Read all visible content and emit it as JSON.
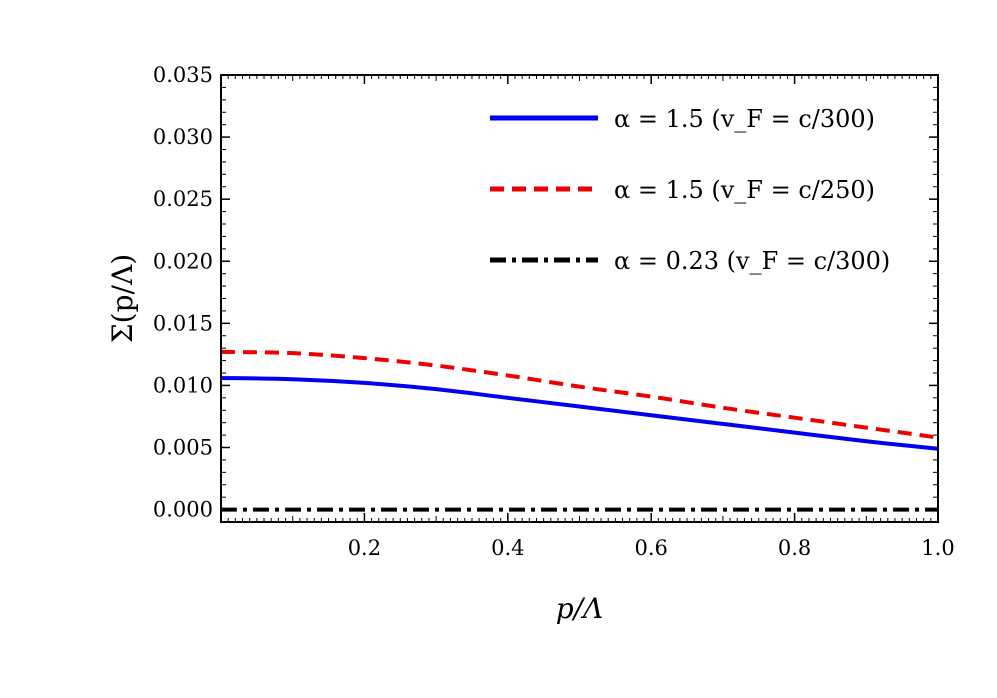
{
  "chart_data": {
    "type": "line",
    "title": "",
    "xlabel": "p/Λ",
    "ylabel": "Σ(p/Λ)",
    "xlim": [
      0.0,
      1.0
    ],
    "ylim": [
      -0.001,
      0.035
    ],
    "x_ticks": [
      0.2,
      0.4,
      0.6,
      0.8,
      1.0
    ],
    "x_tick_labels": [
      "0.2",
      "0.4",
      "0.6",
      "0.8",
      "1.0"
    ],
    "y_ticks": [
      0.0,
      0.005,
      0.01,
      0.015,
      0.02,
      0.025,
      0.03,
      0.035
    ],
    "y_tick_labels": [
      "0.000",
      "0.005",
      "0.010",
      "0.015",
      "0.020",
      "0.025",
      "0.030",
      "0.035"
    ],
    "grid": false,
    "legend_position": "top-right",
    "x": [
      0.0,
      0.1,
      0.2,
      0.3,
      0.4,
      0.5,
      0.6,
      0.7,
      0.8,
      0.9,
      1.0
    ],
    "series": [
      {
        "name": "α = 1.5 (v_F = c/300)",
        "color": "#0000ee",
        "style": "solid",
        "values": [
          0.0106,
          0.0105,
          0.0102,
          0.0097,
          0.009,
          0.0083,
          0.0076,
          0.0069,
          0.0062,
          0.0055,
          0.0049
        ]
      },
      {
        "name": "α = 1.5 (v_F = c/250)",
        "color": "#ee0000",
        "style": "dashed",
        "values": [
          0.0127,
          0.0126,
          0.0122,
          0.0116,
          0.0108,
          0.0099,
          0.0091,
          0.0082,
          0.0074,
          0.0066,
          0.0058
        ]
      },
      {
        "name": "α = 0.23 (v_F = c/300)",
        "color": "#000000",
        "style": "dashdot",
        "values": [
          0.0,
          0.0,
          0.0,
          0.0,
          0.0,
          0.0,
          0.0,
          0.0,
          0.0,
          0.0,
          0.0
        ]
      }
    ]
  }
}
